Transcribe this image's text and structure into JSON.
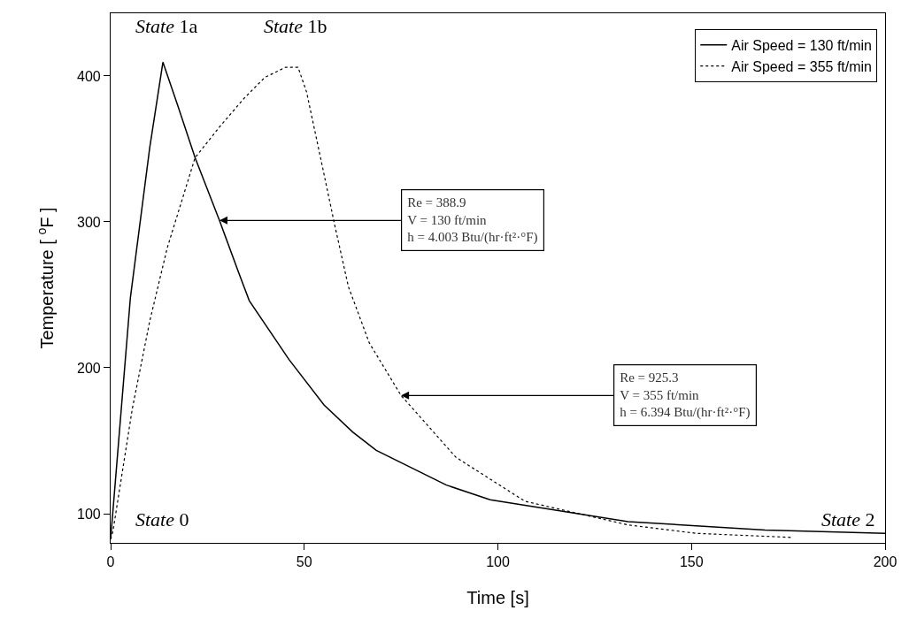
{
  "chart_data": {
    "type": "line",
    "xlabel": "Time [s]",
    "ylabel": "Temperature [ $^{o}$F ]",
    "xlim": [
      0,
      200
    ],
    "xticks": [
      0,
      50,
      100,
      150,
      200
    ],
    "ylim": [
      80,
      443
    ],
    "yticks": [
      100,
      200,
      300,
      400
    ],
    "legend": "top right",
    "marker": "none",
    "series": [
      {
        "name": "Air Speed = 130 ft/min",
        "color": "#000000",
        "line_style": "solid",
        "x": [
          0,
          5.1,
          10.1,
          13.5,
          17.3,
          21.8,
          28.1,
          33.1,
          35.8,
          46.1,
          55.1,
          62.5,
          68.6,
          86.7,
          98,
          133.6,
          169,
          200
        ],
        "values": [
          82.6,
          248,
          351,
          409.5,
          380,
          344,
          301,
          265,
          246,
          205.5,
          174.5,
          156,
          143.4,
          119.6,
          109.6,
          94.6,
          88.8,
          86.5
        ]
      },
      {
        "name": "Air Speed = 355 ft/min",
        "color": "#000000",
        "line_style": "dotted",
        "x": [
          0,
          0.6,
          5.6,
          10.1,
          14.6,
          21.8,
          28.1,
          34.4,
          39.8,
          45.2,
          48.4,
          50.6,
          54.2,
          57.8,
          61.4,
          66.8,
          75,
          89.2,
          107,
          133.6,
          151.3,
          176.2
        ],
        "values": [
          82.6,
          88,
          172,
          232,
          282,
          344,
          365,
          384.5,
          399,
          406,
          406,
          389,
          344,
          298.6,
          255.6,
          217,
          181,
          138.6,
          108.5,
          92.3,
          86.5,
          83.7
        ]
      }
    ],
    "annotations": [
      "State 1a",
      "State 1b",
      "State 0",
      "State 2",
      {
        "text": "Re = 388.9\nV = 130 ft/min\nh = 4.003 Btu/(hr·ft²·°F)",
        "x": 28.1,
        "y": 301
      },
      {
        "text": "Re = 925.3\nV = 355 ft/min\nh = 6.394 Btu/(hr·ft²·°F)",
        "x": 75,
        "y": 181
      }
    ]
  }
}
